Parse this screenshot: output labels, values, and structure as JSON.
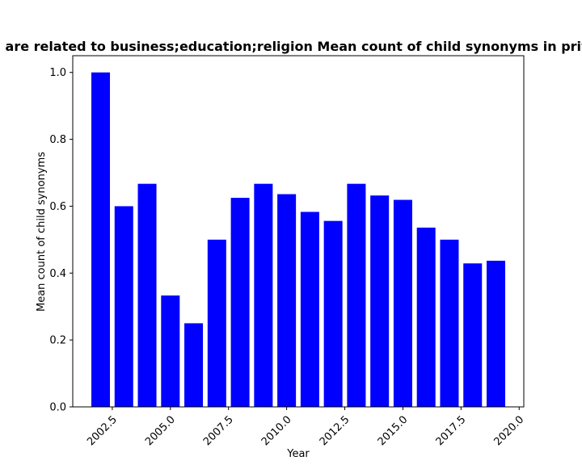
{
  "chart_data": {
    "type": "bar",
    "title": "are related to business;education;religion Mean count of child synonyms in priv",
    "xlabel": "Year",
    "ylabel": "Mean count of child synonyms",
    "x": [
      2002,
      2003,
      2004,
      2005,
      2006,
      2007,
      2008,
      2009,
      2010,
      2011,
      2012,
      2013,
      2014,
      2015,
      2016,
      2017,
      2018,
      2019
    ],
    "values": [
      1.0,
      0.6,
      0.667,
      0.333,
      0.25,
      0.5,
      0.625,
      0.667,
      0.636,
      0.583,
      0.556,
      0.667,
      0.632,
      0.619,
      0.536,
      0.5,
      0.429,
      0.437
    ],
    "xlim": [
      2000.8,
      2020.2
    ],
    "ylim": [
      0,
      1.05
    ],
    "xticks": [
      "2002.5",
      "2005.0",
      "2007.5",
      "2010.0",
      "2012.5",
      "2015.0",
      "2017.5",
      "2020.0"
    ],
    "yticks": [
      "0.0",
      "0.2",
      "0.4",
      "0.6",
      "0.8",
      "1.0"
    ],
    "bar_color": "#0000ff",
    "grid": false,
    "legend": "none"
  }
}
